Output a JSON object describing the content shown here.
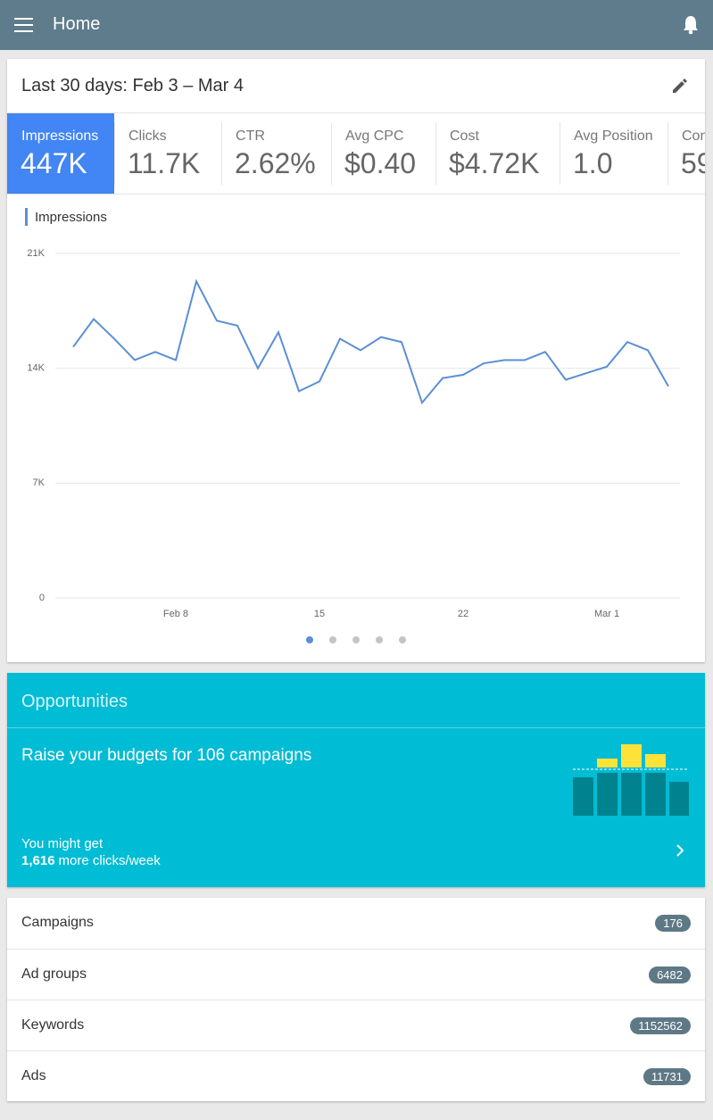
{
  "header": {
    "title": "Home"
  },
  "summary": {
    "date_range": "Last 30 days: Feb 3 – Mar 4",
    "metrics": [
      {
        "label": "Impressions",
        "value": "447K"
      },
      {
        "label": "Clicks",
        "value": "11.7K"
      },
      {
        "label": "CTR",
        "value": "2.62%"
      },
      {
        "label": "Avg CPC",
        "value": "$0.40"
      },
      {
        "label": "Cost",
        "value": "$4.72K"
      },
      {
        "label": "Avg Position",
        "value": "1.0"
      },
      {
        "label": "Con",
        "value": "59"
      }
    ]
  },
  "chart_data": {
    "type": "line",
    "categories": [
      null,
      null,
      null,
      null,
      null,
      "Feb 8",
      null,
      null,
      null,
      null,
      null,
      null,
      "15",
      null,
      null,
      null,
      null,
      null,
      null,
      "22",
      null,
      null,
      null,
      null,
      null,
      null,
      "Mar 1",
      null,
      null,
      null
    ],
    "series": [
      {
        "name": "Impressions",
        "color": "#5b8fd6",
        "values": [
          15300,
          17000,
          15800,
          14500,
          15000,
          14500,
          19300,
          16900,
          16600,
          14000,
          16200,
          12600,
          13200,
          15800,
          15100,
          15900,
          15600,
          11900,
          13400,
          13600,
          14300,
          14500,
          14500,
          15000,
          13300,
          13700,
          14100,
          15600,
          15100,
          12900
        ]
      }
    ],
    "ylim": [
      0,
      21000
    ],
    "yticks": [
      0,
      {
        "value": 7000,
        "label": "7K"
      },
      {
        "value": 14000,
        "label": "14K"
      },
      {
        "value": 21000,
        "label": "21K"
      }
    ],
    "grid": true
  },
  "opportunities": {
    "title": "Opportunities",
    "message": "Raise your budgets for 106 campaigns",
    "note": "You might get",
    "highlight": "1,616",
    "note_suffix": "more clicks/week"
  },
  "counts": [
    {
      "label": "Campaigns",
      "count": 176
    },
    {
      "label": "Ad groups",
      "count": 6482
    },
    {
      "label": "Keywords",
      "count": 1152562
    },
    {
      "label": "Ads",
      "count": 11731
    }
  ]
}
